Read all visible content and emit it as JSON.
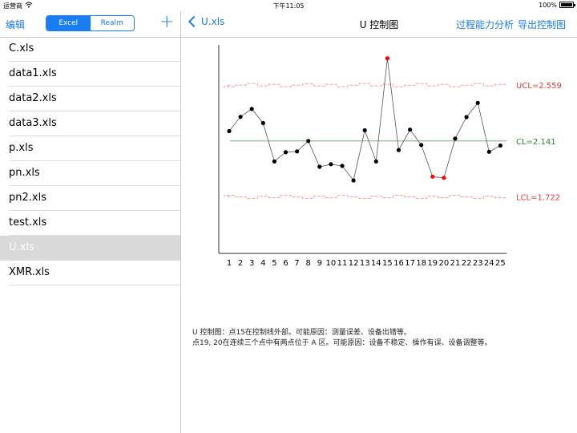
{
  "status_bar": {
    "carrier": "运营商",
    "time": "下午11:05",
    "battery": "100%"
  },
  "left_nav": {
    "edit_label": "编辑",
    "segments": [
      "Excel",
      "Realm"
    ],
    "selected_segment": "Excel",
    "add_label": "+"
  },
  "files": [
    {
      "name": "C.xls"
    },
    {
      "name": "data1.xls"
    },
    {
      "name": "data2.xls"
    },
    {
      "name": "data3.xls"
    },
    {
      "name": "p.xls"
    },
    {
      "name": "pn.xls"
    },
    {
      "name": "pn2.xls"
    },
    {
      "name": "test.xls"
    },
    {
      "name": "U.xls",
      "selected": true
    },
    {
      "name": "XMR.xls"
    }
  ],
  "right_nav": {
    "back_label": "U.xls",
    "title": "U 控制图",
    "action1": "过程能力分析",
    "action2": "导出控制图"
  },
  "colors": {
    "accent": "#1a7cf2",
    "limit_line": "#ff8a8a",
    "center_line": "#2e7d32",
    "out_of_control": "#ff0000"
  },
  "chart_data": {
    "type": "line",
    "title": "",
    "x": [
      1,
      2,
      3,
      4,
      5,
      6,
      7,
      8,
      9,
      10,
      11,
      12,
      13,
      14,
      15,
      16,
      17,
      18,
      19,
      20,
      21,
      22,
      23,
      24,
      25
    ],
    "values": [
      2.215,
      2.322,
      2.381,
      2.275,
      1.988,
      2.057,
      2.063,
      2.141,
      1.948,
      1.967,
      1.955,
      1.846,
      2.221,
      1.988,
      2.76,
      2.073,
      2.226,
      2.111,
      1.874,
      1.865,
      2.159,
      2.32,
      2.426,
      2.06,
      2.107
    ],
    "out_of_control": [
      15,
      19,
      20
    ],
    "limits": {
      "UCL": 2.559,
      "CL": 2.141,
      "LCL": 1.722,
      "UCL_label": "UCL=2.559",
      "CL_label": "CL=2.141",
      "LCL_label": "LCL=1.722"
    },
    "ylim": [
      1.3,
      2.86
    ]
  },
  "notes": [
    "U 控制图：点15在控制线外部。可能原因：测量误差、设备出错等。",
    "点19, 20在连续三个点中有两点位于 A 区。可能原因：设备不稳定、操作有误、设备调整等。"
  ]
}
